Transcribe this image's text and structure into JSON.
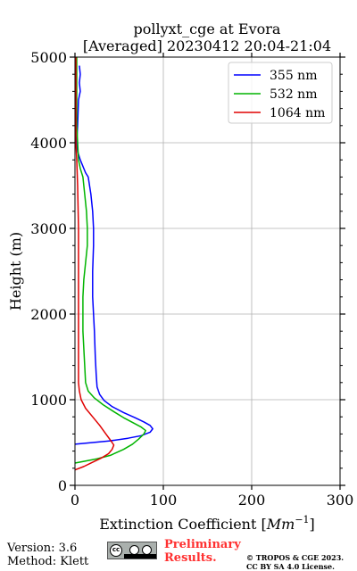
{
  "chart_data": {
    "type": "line",
    "title": "pollyxt_cge at Evora",
    "subtitle": "[Averaged] 20230412 20:04-21:04",
    "xlabel": "Extinction Coefficient [Mm⁻¹]",
    "xlabel_main": "Extinction Coefficient [",
    "xlabel_unit": "Mm",
    "xlabel_exp": "−1",
    "xlabel_end": "]",
    "ylabel": "Height (m)",
    "xlim": [
      0,
      300
    ],
    "ylim": [
      0,
      5000
    ],
    "xticks": [
      0,
      100,
      200,
      300
    ],
    "yticks": [
      0,
      1000,
      2000,
      3000,
      4000,
      5000
    ],
    "xtick_labels": [
      "0",
      "100",
      "200",
      "300"
    ],
    "ytick_labels": [
      "0",
      "1000",
      "2000",
      "3000",
      "4000",
      "5000"
    ],
    "grid": true,
    "legend": "top-right",
    "series": [
      {
        "name": "355 nm",
        "color": "#0000ff",
        "points": [
          [
            0,
            480
          ],
          [
            20,
            500
          ],
          [
            40,
            520
          ],
          [
            60,
            550
          ],
          [
            75,
            580
          ],
          [
            85,
            620
          ],
          [
            88,
            660
          ],
          [
            85,
            700
          ],
          [
            78,
            740
          ],
          [
            68,
            790
          ],
          [
            55,
            850
          ],
          [
            42,
            920
          ],
          [
            33,
            990
          ],
          [
            28,
            1060
          ],
          [
            25,
            1150
          ],
          [
            24,
            1300
          ],
          [
            23,
            1500
          ],
          [
            22,
            1800
          ],
          [
            21,
            2000
          ],
          [
            20,
            2200
          ],
          [
            20,
            2500
          ],
          [
            21,
            2800
          ],
          [
            21,
            3000
          ],
          [
            20,
            3200
          ],
          [
            18,
            3400
          ],
          [
            15,
            3600
          ],
          [
            12,
            3650
          ],
          [
            6,
            3800
          ],
          [
            3,
            3900
          ],
          [
            2,
            4000
          ],
          [
            3,
            4200
          ],
          [
            4,
            4500
          ],
          [
            6,
            4600
          ],
          [
            5,
            4700
          ],
          [
            6,
            4800
          ],
          [
            5,
            4900
          ]
        ]
      },
      {
        "name": "532 nm",
        "color": "#00b400",
        "points": [
          [
            0,
            260
          ],
          [
            10,
            280
          ],
          [
            25,
            310
          ],
          [
            40,
            350
          ],
          [
            55,
            420
          ],
          [
            65,
            480
          ],
          [
            72,
            540
          ],
          [
            78,
            600
          ],
          [
            80,
            640
          ],
          [
            75,
            680
          ],
          [
            66,
            730
          ],
          [
            55,
            790
          ],
          [
            44,
            860
          ],
          [
            32,
            940
          ],
          [
            22,
            1020
          ],
          [
            15,
            1100
          ],
          [
            12,
            1200
          ],
          [
            11,
            1400
          ],
          [
            10,
            1600
          ],
          [
            9,
            1800
          ],
          [
            9,
            2000
          ],
          [
            9,
            2200
          ],
          [
            10,
            2400
          ],
          [
            12,
            2600
          ],
          [
            14,
            2800
          ],
          [
            14,
            3000
          ],
          [
            13,
            3200
          ],
          [
            11,
            3400
          ],
          [
            9,
            3600
          ],
          [
            6,
            3700
          ],
          [
            4,
            3800
          ],
          [
            3,
            4000
          ],
          [
            2,
            4200
          ],
          [
            2,
            4500
          ],
          [
            2,
            4800
          ],
          [
            2,
            5000
          ]
        ]
      },
      {
        "name": "1064 nm",
        "color": "#e00000",
        "points": [
          [
            0,
            180
          ],
          [
            10,
            220
          ],
          [
            20,
            270
          ],
          [
            30,
            320
          ],
          [
            38,
            370
          ],
          [
            42,
            420
          ],
          [
            44,
            470
          ],
          [
            40,
            530
          ],
          [
            35,
            600
          ],
          [
            28,
            700
          ],
          [
            20,
            800
          ],
          [
            12,
            900
          ],
          [
            7,
            1000
          ],
          [
            5,
            1100
          ],
          [
            4,
            1200
          ],
          [
            4,
            1500
          ],
          [
            4,
            2000
          ],
          [
            4,
            2500
          ],
          [
            4,
            3000
          ],
          [
            3,
            3500
          ],
          [
            2,
            3800
          ],
          [
            1,
            4000
          ],
          [
            1,
            4500
          ],
          [
            1,
            5000
          ]
        ]
      }
    ]
  },
  "footer": {
    "version": "Version: 3.6",
    "method": "Method: Klett",
    "preliminary_line1": "Preliminary",
    "preliminary_line2": "Results.",
    "copyright_line1": "© TROPOS & CGE 2023.",
    "copyright_line2": "CC BY SA 4.0 License.",
    "badge_text": "cc"
  }
}
